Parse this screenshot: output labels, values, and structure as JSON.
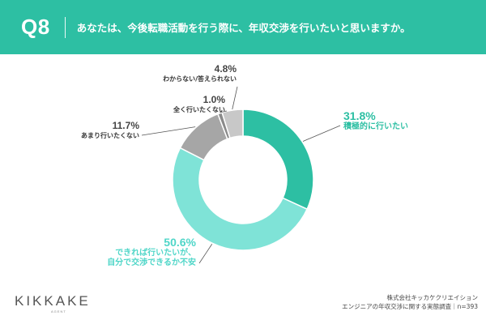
{
  "header": {
    "question_number": "Q8",
    "question_text": "あなたは、今後転職活動を行う際に、年収交渉を行いたいと思いますか。"
  },
  "chart_data": {
    "type": "pie",
    "donut": true,
    "slices": [
      {
        "key": "proactive",
        "label": "積極的に行いたい",
        "value": 31.8,
        "pct_text": "31.8%",
        "color": "#2dbfa3"
      },
      {
        "key": "if_possible",
        "label_lines": [
          "できれば行いたいが、",
          "自分で交渉できるか不安"
        ],
        "value": 50.6,
        "pct_text": "50.6%",
        "color": "#7fe3d7"
      },
      {
        "key": "not_much",
        "label": "あまり行いたくない",
        "value": 11.7,
        "pct_text": "11.7%",
        "color": "#a6a6a6"
      },
      {
        "key": "not_at_all",
        "label": "全く行いたくない",
        "value": 1.0,
        "pct_text": "1.0%",
        "color": "#8a8a8a"
      },
      {
        "key": "unknown",
        "label": "わからない/答えられない",
        "value": 4.8,
        "pct_text": "4.8%",
        "color": "#c8c8c8"
      }
    ]
  },
  "footer": {
    "logo": "KIKKAKE",
    "logo_sub": "AGENT",
    "source_line1": "株式会社キッカケクリエイション",
    "source_line2": "エンジニアの年収交渉に関する実態調査｜n=393"
  }
}
